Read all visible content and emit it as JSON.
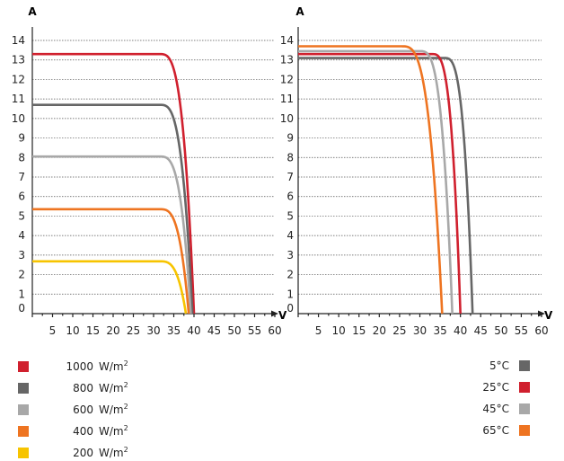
{
  "chart_data": [
    {
      "type": "line",
      "ylabel": "A",
      "xlabel": "V",
      "xlim": [
        0,
        60
      ],
      "ylim": [
        0,
        14
      ],
      "x_ticks": [
        5,
        10,
        15,
        20,
        25,
        30,
        35,
        40,
        45,
        50,
        55,
        60
      ],
      "y_ticks": [
        0,
        1,
        2,
        3,
        4,
        5,
        6,
        7,
        8,
        9,
        10,
        11,
        12,
        13,
        14
      ],
      "grid": true,
      "series": [
        {
          "name": "1000 W/m²",
          "color": "#d0202e",
          "isc": 13.3,
          "knee_v": 31.5,
          "voc": 40.0
        },
        {
          "name": "800 W/m²",
          "color": "#666666",
          "isc": 10.7,
          "knee_v": 31.5,
          "voc": 39.6
        },
        {
          "name": "600 W/m²",
          "color": "#a8a8a8",
          "isc": 8.05,
          "knee_v": 31.5,
          "voc": 39.2
        },
        {
          "name": "400 W/m²",
          "color": "#ee7421",
          "isc": 5.35,
          "knee_v": 31.5,
          "voc": 38.7
        },
        {
          "name": "200 W/m²",
          "color": "#f7c400",
          "isc": 2.68,
          "knee_v": 31.5,
          "voc": 38.0
        }
      ]
    },
    {
      "type": "line",
      "ylabel": "A",
      "xlabel": "V",
      "xlim": [
        0,
        60
      ],
      "ylim": [
        0,
        14
      ],
      "x_ticks": [
        5,
        10,
        15,
        20,
        25,
        30,
        35,
        40,
        45,
        50,
        55,
        60
      ],
      "y_ticks": [
        0,
        1,
        2,
        3,
        4,
        5,
        6,
        7,
        8,
        9,
        10,
        11,
        12,
        13,
        14
      ],
      "grid": true,
      "series": [
        {
          "name": "5°C",
          "color": "#666666",
          "isc": 13.1,
          "knee_v": 36.0,
          "voc": 43.0
        },
        {
          "name": "25°C",
          "color": "#d0202e",
          "isc": 13.3,
          "knee_v": 33.0,
          "voc": 40.0
        },
        {
          "name": "45°C",
          "color": "#a8a8a8",
          "isc": 13.45,
          "knee_v": 30.0,
          "voc": 38.0
        },
        {
          "name": "65°C",
          "color": "#ee7421",
          "isc": 13.7,
          "knee_v": 25.5,
          "voc": 35.5
        }
      ]
    }
  ],
  "legend_left": [
    {
      "value": "1000",
      "unit": "W/m",
      "sup": "2",
      "color": "#d0202e"
    },
    {
      "value": "800",
      "unit": "W/m",
      "sup": "2",
      "color": "#666666"
    },
    {
      "value": "600",
      "unit": "W/m",
      "sup": "2",
      "color": "#a8a8a8"
    },
    {
      "value": "400",
      "unit": "W/m",
      "sup": "2",
      "color": "#ee7421"
    },
    {
      "value": "200",
      "unit": "W/m",
      "sup": "2",
      "color": "#f7c400"
    }
  ],
  "legend_right": [
    {
      "label": "5°C",
      "color": "#666666"
    },
    {
      "label": "25°C",
      "color": "#d0202e"
    },
    {
      "label": "45°C",
      "color": "#a8a8a8"
    },
    {
      "label": "65°C",
      "color": "#ee7421"
    }
  ]
}
